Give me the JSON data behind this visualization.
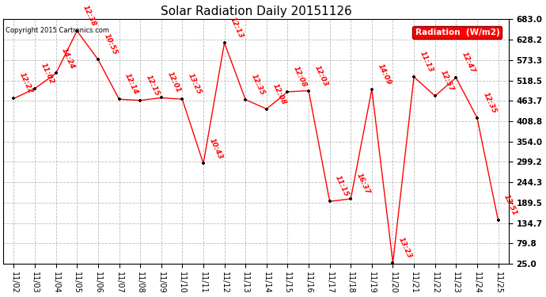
{
  "title": "Solar Radiation Daily 20151126",
  "copyright": "Copyright 2015 Cartronics.com",
  "legend_label": "Radiation  (W/m2)",
  "dates": [
    "11/02",
    "11/03",
    "11/04",
    "11/05",
    "11/06",
    "11/07",
    "11/08",
    "11/09",
    "11/10",
    "11/11",
    "11/12",
    "11/13",
    "11/14",
    "11/15",
    "11/16",
    "11/17",
    "11/18",
    "11/19",
    "11/20",
    "11/21",
    "11/22",
    "11/23",
    "11/24",
    "11/25"
  ],
  "values": [
    470,
    497,
    538,
    652,
    575,
    468,
    465,
    472,
    468,
    295,
    620,
    467,
    442,
    488,
    491,
    193,
    200,
    495,
    28,
    528,
    477,
    526,
    418,
    142
  ],
  "labels": [
    "12:22",
    "11:02",
    "14:24",
    "12:38",
    "10:55",
    "12:14",
    "12:15",
    "12:01",
    "13:25",
    "10:43",
    "12:13",
    "12:35",
    "12:08",
    "12:08",
    "12:03",
    "11:15",
    "16:37",
    "14:09",
    "13:23",
    "11:13",
    "12:57",
    "12:47",
    "12:35",
    "13:51"
  ],
  "ylim": [
    25.0,
    683.0
  ],
  "yticks": [
    25.0,
    79.8,
    134.7,
    189.5,
    244.3,
    299.2,
    354.0,
    408.8,
    463.7,
    518.5,
    573.3,
    628.2,
    683.0
  ],
  "line_color": "red",
  "marker_color": "black",
  "background_color": "white",
  "grid_color": "#aaaaaa",
  "title_fontsize": 11,
  "label_fontsize": 6.5,
  "xtick_fontsize": 7,
  "ytick_fontsize": 7.5,
  "legend_bg": "red",
  "legend_fg": "white"
}
